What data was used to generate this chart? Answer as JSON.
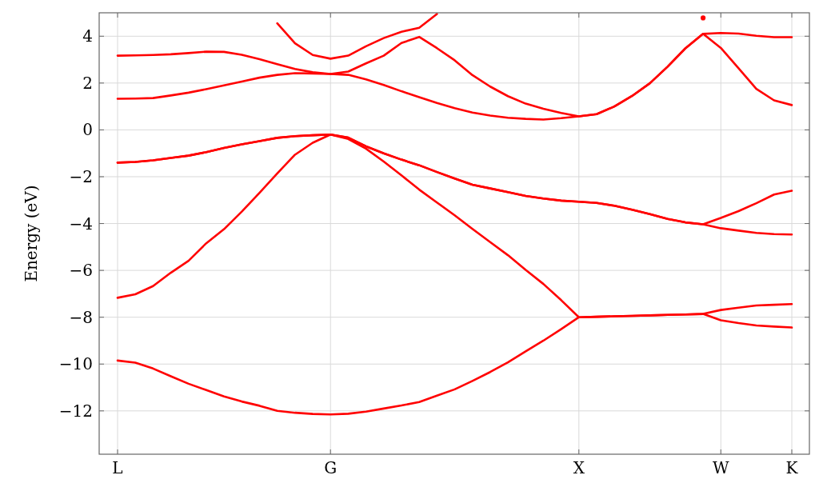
{
  "chart_data": {
    "type": "line",
    "ylabel": "Energy (eV)",
    "categories": [
      "L",
      null,
      null,
      null,
      null,
      null,
      null,
      null,
      null,
      null,
      null,
      null,
      "G",
      null,
      null,
      null,
      null,
      null,
      null,
      null,
      null,
      null,
      null,
      null,
      null,
      null,
      "X",
      null,
      null,
      null,
      null,
      null,
      null,
      null,
      "W",
      null,
      null,
      null,
      "K"
    ],
    "ylim": [
      -13.85,
      5
    ],
    "yticks": [
      {
        "value": -12,
        "label": "−12"
      },
      {
        "value": -10,
        "label": "−10"
      },
      {
        "value": -8,
        "label": "−8"
      },
      {
        "value": -6,
        "label": "−6"
      },
      {
        "value": -4,
        "label": "−4"
      },
      {
        "value": -2,
        "label": "−2"
      },
      0,
      2,
      4
    ],
    "grid": true,
    "marker": "none",
    "line_style": "solid",
    "series": [
      {
        "color": "#ff0000",
        "values": [
          -9.85,
          -9.94,
          -10.19,
          -10.52,
          -10.84,
          -11.11,
          -11.38,
          -11.6,
          -11.78,
          -12.0,
          -12.08,
          -12.13,
          -12.15,
          -12.12,
          -12.03,
          -11.9,
          -11.77,
          -11.62,
          -11.35,
          -11.08,
          -10.72,
          -10.34,
          -9.93,
          -9.46,
          -9.0,
          -8.51,
          -8.0,
          -7.98,
          -7.96,
          -7.94,
          -7.92,
          -7.9,
          -7.88,
          -7.86,
          -8.13,
          -8.25,
          -8.35,
          -8.4,
          -8.44
        ]
      },
      {
        "color": "#ff0000",
        "values": [
          -7.17,
          -7.02,
          -6.67,
          -6.1,
          -5.59,
          -4.84,
          -4.24,
          -3.49,
          -2.69,
          -1.86,
          -1.06,
          -0.55,
          -0.2,
          -0.39,
          -0.8,
          -1.35,
          -1.94,
          -2.55,
          -3.1,
          -3.65,
          -4.23,
          -4.79,
          -5.35,
          -5.98,
          -6.58,
          -7.27,
          -8.0,
          -7.98,
          -7.96,
          -7.94,
          -7.92,
          -7.9,
          -7.88,
          -7.86,
          -7.69,
          -7.59,
          -7.5,
          -7.47,
          -7.44
        ]
      },
      {
        "color": "#ff0000",
        "values": [
          -1.4,
          -1.37,
          -1.3,
          -1.2,
          -1.1,
          -0.95,
          -0.77,
          -0.62,
          -0.48,
          -0.34,
          -0.27,
          -0.23,
          -0.2,
          -0.33,
          -0.7,
          -1.0,
          -1.27,
          -1.51,
          -1.8,
          -2.08,
          -2.34,
          -2.5,
          -2.66,
          -2.82,
          -2.93,
          -3.02,
          -3.07,
          -3.12,
          -3.24,
          -3.41,
          -3.6,
          -3.8,
          -3.95,
          -4.03,
          -3.76,
          -3.47,
          -3.13,
          -2.76,
          -2.6
        ]
      },
      {
        "color": "#ff0000",
        "values": [
          -1.4,
          -1.37,
          -1.3,
          -1.2,
          -1.1,
          -0.95,
          -0.77,
          -0.62,
          -0.48,
          -0.34,
          -0.27,
          -0.23,
          -0.2,
          -0.33,
          -0.7,
          -1.0,
          -1.27,
          -1.51,
          -1.8,
          -2.08,
          -2.34,
          -2.5,
          -2.66,
          -2.82,
          -2.93,
          -3.02,
          -3.07,
          -3.12,
          -3.24,
          -3.41,
          -3.6,
          -3.8,
          -3.95,
          -4.03,
          -4.2,
          -4.3,
          -4.4,
          -4.45,
          -4.47
        ]
      },
      {
        "color": "#ff0000",
        "values": [
          1.33,
          1.34,
          1.36,
          1.47,
          1.59,
          1.74,
          1.9,
          2.06,
          2.23,
          2.35,
          2.42,
          2.41,
          2.39,
          2.35,
          2.16,
          1.92,
          1.65,
          1.4,
          1.15,
          0.93,
          0.74,
          0.61,
          0.52,
          0.47,
          0.44,
          0.5,
          0.58,
          0.67,
          1.0,
          1.45,
          1.99,
          2.7,
          3.48,
          4.1,
          3.5,
          2.63,
          1.75,
          1.26,
          1.06
        ]
      },
      {
        "color": "#ff0000",
        "values": [
          3.17,
          3.18,
          3.2,
          3.23,
          3.28,
          3.34,
          3.33,
          3.21,
          3.02,
          2.81,
          2.6,
          2.46,
          2.39,
          2.49,
          2.84,
          3.17,
          3.71,
          3.97,
          3.49,
          2.97,
          2.34,
          1.85,
          1.44,
          1.12,
          0.9,
          0.72,
          0.58,
          0.67,
          1.0,
          1.45,
          1.99,
          2.7,
          3.48,
          4.1,
          4.14,
          4.11,
          4.02,
          3.96,
          3.96
        ]
      },
      {
        "color": "#ff0000",
        "values": [
          null,
          null,
          null,
          null,
          null,
          null,
          null,
          null,
          null,
          4.55,
          3.7,
          3.2,
          3.04,
          3.17,
          3.57,
          3.92,
          4.19,
          4.36,
          4.95,
          null,
          null,
          null,
          null,
          null,
          null,
          null,
          null,
          null,
          null,
          null,
          null,
          null,
          null,
          null,
          null,
          null,
          null,
          null,
          null
        ]
      },
      {
        "color": "#ff0000",
        "marker": "circle",
        "values": [
          null,
          null,
          null,
          null,
          null,
          null,
          null,
          null,
          null,
          null,
          null,
          null,
          null,
          null,
          null,
          null,
          null,
          null,
          null,
          null,
          null,
          null,
          null,
          null,
          null,
          null,
          null,
          null,
          null,
          null,
          null,
          null,
          null,
          4.78,
          null,
          null,
          null,
          null,
          null
        ]
      }
    ]
  }
}
